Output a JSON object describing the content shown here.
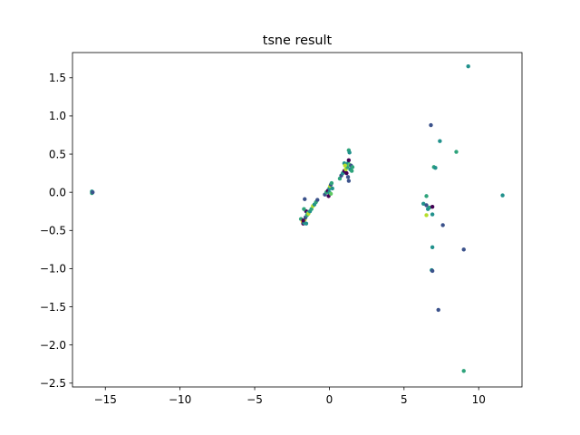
{
  "chart_data": {
    "type": "scatter",
    "title": "tsne result",
    "xlabel": "",
    "ylabel": "",
    "xlim": [
      -17.2,
      12.9
    ],
    "ylim": [
      -2.55,
      1.83
    ],
    "grid": false,
    "xticks": [
      -15,
      -10,
      -5,
      0,
      5,
      10
    ],
    "xtick_labels": [
      "−15",
      "−10",
      "−5",
      "0",
      "5",
      "10"
    ],
    "yticks": [
      -2.5,
      -2.0,
      -1.5,
      -1.0,
      -0.5,
      0.0,
      0.5,
      1.0,
      1.5
    ],
    "ytick_labels": [
      "−2.5",
      "−2.0",
      "−1.5",
      "−1.0",
      "−0.5",
      "0.0",
      "0.5",
      "1.0",
      "1.5"
    ],
    "palette": [
      "#440154",
      "#3b528b",
      "#21918c",
      "#2ea37b",
      "#5ec962",
      "#fde725",
      "#b5de2b"
    ],
    "points": [
      {
        "x": -15.9,
        "y": 0.01,
        "c": 2
      },
      {
        "x": -15.9,
        "y": -0.01,
        "c": 3
      },
      {
        "x": -15.85,
        "y": 0.0,
        "c": 1
      },
      {
        "x": -1.9,
        "y": -0.35,
        "c": 3
      },
      {
        "x": -1.8,
        "y": -0.38,
        "c": 5
      },
      {
        "x": -1.75,
        "y": -0.41,
        "c": 0
      },
      {
        "x": -1.7,
        "y": -0.4,
        "c": 2
      },
      {
        "x": -1.65,
        "y": -0.36,
        "c": 6
      },
      {
        "x": -1.6,
        "y": -0.33,
        "c": 1
      },
      {
        "x": -1.55,
        "y": -0.25,
        "c": 0
      },
      {
        "x": -1.5,
        "y": -0.3,
        "c": 3
      },
      {
        "x": -1.45,
        "y": -0.27,
        "c": 2
      },
      {
        "x": -1.4,
        "y": -0.28,
        "c": 6
      },
      {
        "x": -1.7,
        "y": -0.22,
        "c": 3
      },
      {
        "x": -1.65,
        "y": -0.09,
        "c": 1
      },
      {
        "x": -1.3,
        "y": -0.25,
        "c": 2
      },
      {
        "x": -1.2,
        "y": -0.22,
        "c": 3
      },
      {
        "x": -1.1,
        "y": -0.18,
        "c": 6
      },
      {
        "x": -1.0,
        "y": -0.16,
        "c": 2
      },
      {
        "x": -0.9,
        "y": -0.13,
        "c": 3
      },
      {
        "x": -0.8,
        "y": -0.1,
        "c": 1
      },
      {
        "x": -1.75,
        "y": -0.37,
        "c": 0
      },
      {
        "x": -1.55,
        "y": -0.41,
        "c": 2
      },
      {
        "x": -0.3,
        "y": -0.03,
        "c": 1
      },
      {
        "x": -0.2,
        "y": 0.0,
        "c": 3
      },
      {
        "x": -0.1,
        "y": 0.02,
        "c": 0
      },
      {
        "x": 0.0,
        "y": 0.05,
        "c": 2
      },
      {
        "x": 0.05,
        "y": 0.08,
        "c": 6
      },
      {
        "x": 0.1,
        "y": 0.1,
        "c": 1
      },
      {
        "x": 0.15,
        "y": 0.12,
        "c": 3
      },
      {
        "x": 0.0,
        "y": 0.0,
        "c": 2
      },
      {
        "x": -0.05,
        "y": -0.05,
        "c": 0
      },
      {
        "x": 0.1,
        "y": -0.02,
        "c": 4
      },
      {
        "x": 0.2,
        "y": 0.05,
        "c": 2
      },
      {
        "x": 0.7,
        "y": 0.18,
        "c": 3
      },
      {
        "x": 0.8,
        "y": 0.22,
        "c": 1
      },
      {
        "x": 0.9,
        "y": 0.25,
        "c": 2
      },
      {
        "x": 1.0,
        "y": 0.28,
        "c": 0
      },
      {
        "x": 1.1,
        "y": 0.3,
        "c": 6
      },
      {
        "x": 1.2,
        "y": 0.33,
        "c": 3
      },
      {
        "x": 1.25,
        "y": 0.38,
        "c": 2
      },
      {
        "x": 1.3,
        "y": 0.42,
        "c": 0
      },
      {
        "x": 1.35,
        "y": 0.36,
        "c": 4
      },
      {
        "x": 1.4,
        "y": 0.3,
        "c": 2
      },
      {
        "x": 1.45,
        "y": 0.35,
        "c": 1
      },
      {
        "x": 1.5,
        "y": 0.28,
        "c": 3
      },
      {
        "x": 1.3,
        "y": 0.55,
        "c": 3
      },
      {
        "x": 1.35,
        "y": 0.52,
        "c": 2
      },
      {
        "x": 1.25,
        "y": 0.2,
        "c": 1
      },
      {
        "x": 1.3,
        "y": 0.15,
        "c": 1
      },
      {
        "x": 1.0,
        "y": 0.38,
        "c": 2
      },
      {
        "x": 1.15,
        "y": 0.25,
        "c": 0
      },
      {
        "x": 1.55,
        "y": 0.33,
        "c": 3
      },
      {
        "x": 1.05,
        "y": 0.35,
        "c": 6
      },
      {
        "x": 9.3,
        "y": 1.65,
        "c": 2
      },
      {
        "x": 6.8,
        "y": 0.88,
        "c": 1
      },
      {
        "x": 7.4,
        "y": 0.67,
        "c": 2
      },
      {
        "x": 8.5,
        "y": 0.53,
        "c": 3
      },
      {
        "x": 7.0,
        "y": 0.33,
        "c": 3
      },
      {
        "x": 7.1,
        "y": 0.32,
        "c": 2
      },
      {
        "x": 11.6,
        "y": -0.04,
        "c": 2
      },
      {
        "x": 6.5,
        "y": -0.05,
        "c": 3
      },
      {
        "x": 6.3,
        "y": -0.15,
        "c": 2
      },
      {
        "x": 6.5,
        "y": -0.17,
        "c": 1
      },
      {
        "x": 6.7,
        "y": -0.2,
        "c": 3
      },
      {
        "x": 6.9,
        "y": -0.19,
        "c": 0
      },
      {
        "x": 6.6,
        "y": -0.22,
        "c": 2
      },
      {
        "x": 6.5,
        "y": -0.3,
        "c": 6
      },
      {
        "x": 6.9,
        "y": -0.29,
        "c": 2
      },
      {
        "x": 7.6,
        "y": -0.43,
        "c": 1
      },
      {
        "x": 6.9,
        "y": -0.72,
        "c": 2
      },
      {
        "x": 9.0,
        "y": -0.75,
        "c": 1
      },
      {
        "x": 6.85,
        "y": -1.02,
        "c": 2
      },
      {
        "x": 6.9,
        "y": -1.03,
        "c": 1
      },
      {
        "x": 7.3,
        "y": -1.54,
        "c": 1
      },
      {
        "x": 9.0,
        "y": -2.34,
        "c": 3
      }
    ]
  }
}
